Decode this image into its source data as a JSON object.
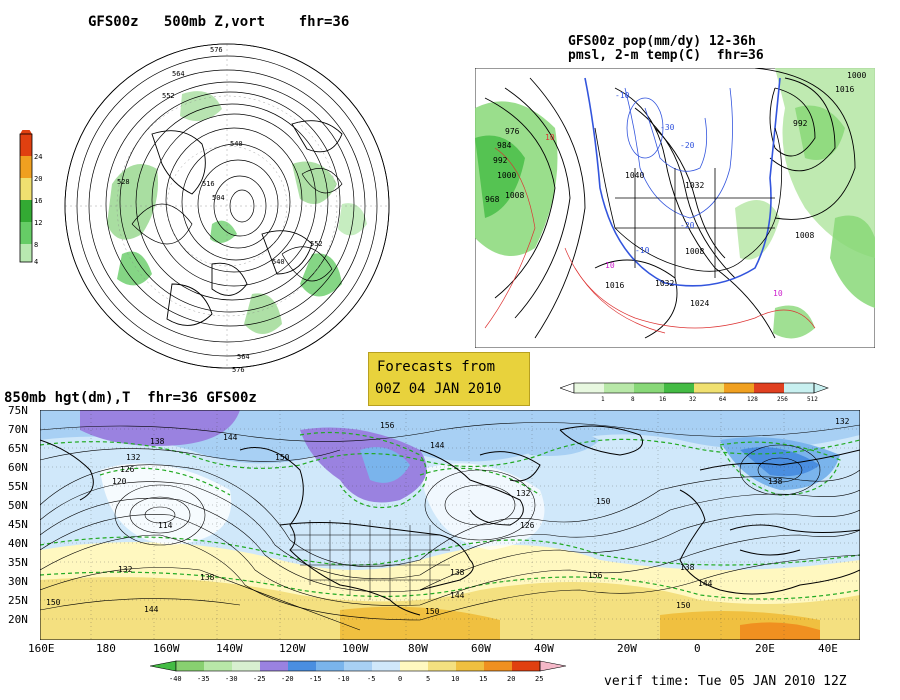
{
  "panel_polar": {
    "title": "GFS00z   500mb Z,vort    fhr=36",
    "colorbar": {
      "ticks": [
        "4",
        "8",
        "12",
        "16",
        "20",
        "24"
      ],
      "colors": [
        "#ffffff",
        "#b8e8b0",
        "#66cc66",
        "#33aa33",
        "#f0e070",
        "#f0a020",
        "#e04010"
      ]
    },
    "contour_labels": [
      "576",
      "564",
      "552",
      "540",
      "528",
      "516",
      "504",
      "540",
      "552",
      "564",
      "576"
    ]
  },
  "panel_conus": {
    "title_line1": "GFS00z pop(mm/dy) 12-36h",
    "title_line2": "pmsl, 2-m temp(C)  fhr=36",
    "colorbar": {
      "ticks": [
        "1",
        "8",
        "16",
        "32",
        "64",
        "128",
        "256",
        "512"
      ],
      "colors": [
        "#e8f8e0",
        "#b8e8a8",
        "#88d878",
        "#44bb44",
        "#f0e070",
        "#f0a020",
        "#e04020",
        "#c8f0f0"
      ]
    },
    "pressure_labels": [
      "1032",
      "1040",
      "1016",
      "1008",
      "1000",
      "992",
      "984",
      "976",
      "968",
      "1008",
      "1024",
      "1032",
      "1000",
      "992",
      "1008",
      "1016"
    ],
    "temp_labels": [
      "-10",
      "-20",
      "-30",
      "10",
      "-10",
      "-20",
      "10",
      "10"
    ]
  },
  "forecast_box": {
    "line1": "Forecasts from",
    "line2": "00Z 04 JAN 2010"
  },
  "panel_850": {
    "title": "850mb hgt(dm),T  fhr=36 GFS00z",
    "lat_labels": [
      "75N",
      "70N",
      "65N",
      "60N",
      "55N",
      "50N",
      "45N",
      "40N",
      "35N",
      "30N",
      "25N",
      "20N"
    ],
    "lon_labels": [
      "160E",
      "180",
      "160W",
      "140W",
      "120W",
      "100W",
      "80W",
      "60W",
      "40W",
      "20W",
      "0",
      "20E",
      "40E"
    ],
    "height_labels": [
      "138",
      "144",
      "132",
      "126",
      "120",
      "114",
      "132",
      "138",
      "144",
      "150",
      "156",
      "132",
      "150",
      "144",
      "150",
      "126",
      "138",
      "132",
      "156",
      "144",
      "150",
      "138",
      "144",
      "150",
      "138"
    ],
    "colorbar": {
      "ticks": [
        "-40",
        "-35",
        "-30",
        "-25",
        "-20",
        "-15",
        "-10",
        "-5",
        "0",
        "5",
        "10",
        "15",
        "20",
        "25"
      ],
      "colors": [
        "#44bb44",
        "#88d070",
        "#b8e8a8",
        "#d8f0d0",
        "#9a82e0",
        "#4a8ee0",
        "#7ab4ec",
        "#a8d0f4",
        "#d0e8fa",
        "#fff8c0",
        "#f4e080",
        "#f0c040",
        "#f09020",
        "#e04010",
        "#f4b8c8"
      ]
    }
  },
  "verif_time": "verif time: Tue 05 JAN 2010 12Z"
}
